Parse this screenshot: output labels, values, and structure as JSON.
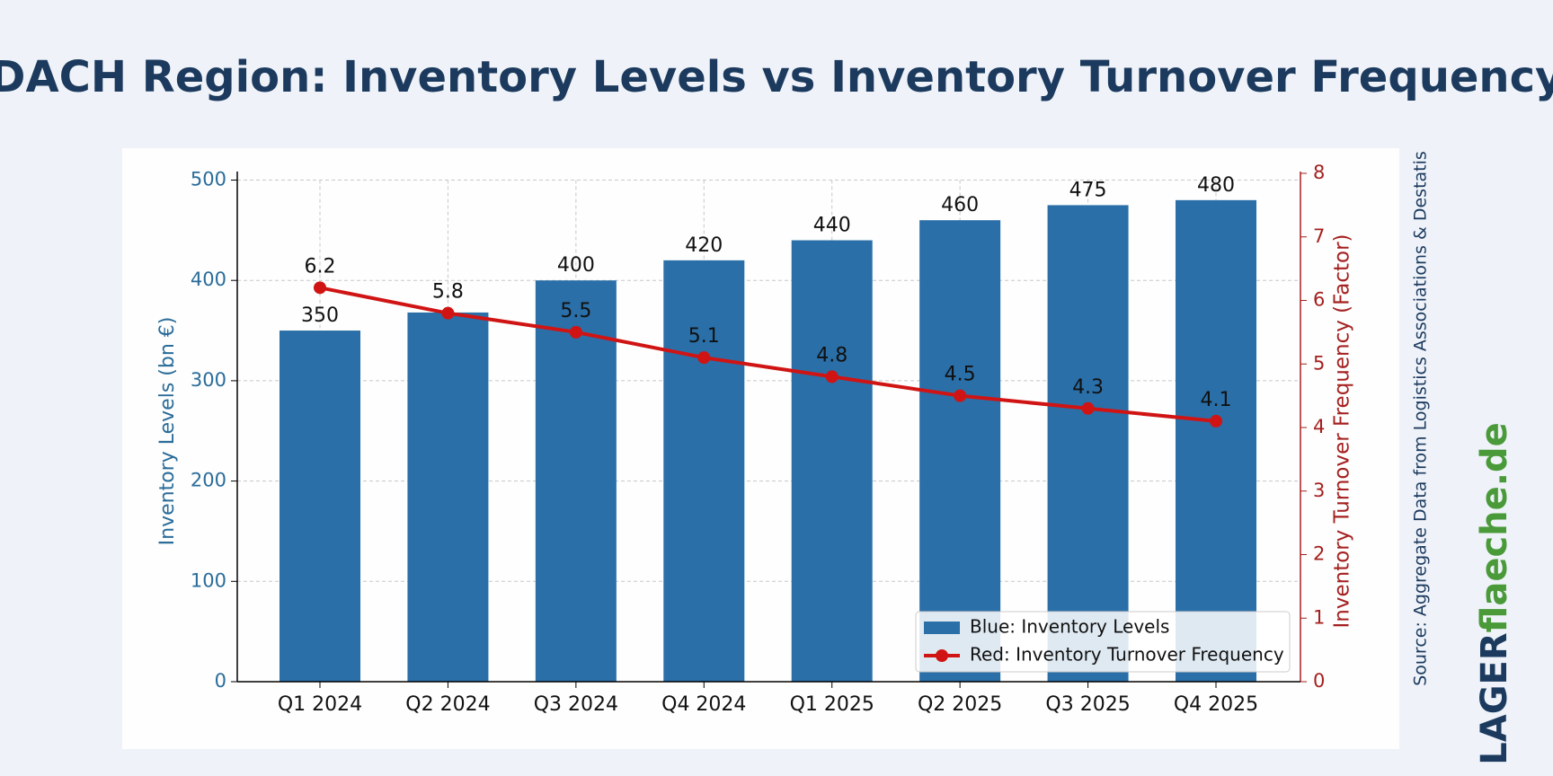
{
  "chart_data": {
    "type": "bar_line",
    "title": "DACH Region: Inventory Levels vs Inventory Turnover Frequency",
    "categories": [
      "Q1 2024",
      "Q2 2024",
      "Q3 2024",
      "Q4 2024",
      "Q1 2025",
      "Q2 2025",
      "Q3 2025",
      "Q4 2025"
    ],
    "series": [
      {
        "name": "Blue: Inventory Levels",
        "type": "bar",
        "color": "#2a6fa8",
        "values": [
          350,
          368,
          400,
          420,
          440,
          460,
          475,
          480
        ],
        "value_labels": [
          "350",
          null,
          "400",
          "420",
          "440",
          "460",
          "475",
          "480"
        ]
      },
      {
        "name": "Red: Inventory Turnover Frequency",
        "type": "line",
        "axis": "y2",
        "color": "#d01414",
        "values": [
          6.2,
          5.8,
          5.5,
          5.1,
          4.8,
          4.5,
          4.3,
          4.1
        ]
      }
    ],
    "ylabel": "Inventory Levels (bn €)",
    "y2label": "Inventory Turnover Frequency (Factor)",
    "ylim": [
      0,
      500
    ],
    "yticks": [
      0,
      100,
      200,
      300,
      400,
      500
    ],
    "y2lim": [
      0,
      8
    ],
    "y2ticks": [
      0,
      1,
      2,
      3,
      4,
      5,
      6,
      7,
      8
    ],
    "grid": true,
    "legend": "lower right",
    "source": "Source: Aggregate Data from Logistics Associations & Destatis",
    "brand": {
      "part1": "LAGER",
      "part2": "flaeche.de"
    }
  }
}
